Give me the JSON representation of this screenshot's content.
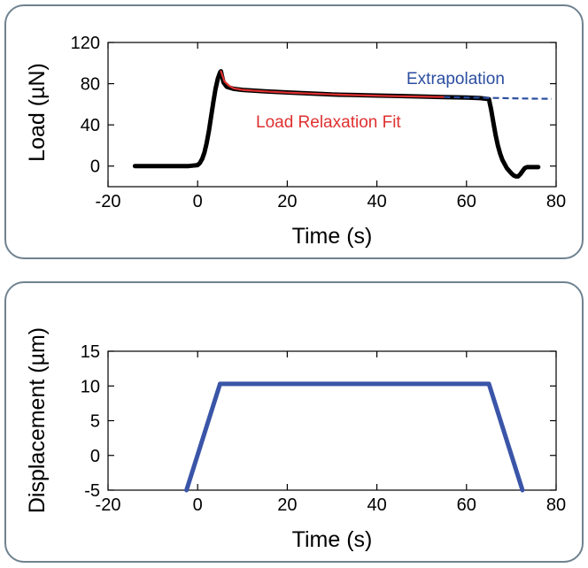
{
  "chart_data": [
    {
      "type": "line",
      "xlabel": "Time (s)",
      "ylabel": "Load (µN)",
      "xlim": [
        -20,
        80
      ],
      "ylim": [
        -20,
        120
      ],
      "xticks": [
        -20,
        0,
        20,
        40,
        60,
        80
      ],
      "yticks": [
        0,
        40,
        80,
        120
      ],
      "xtick_labels": [
        "-20",
        "0",
        "20",
        "40",
        "60",
        "80"
      ],
      "ytick_labels": [
        "0",
        "40",
        "80",
        "120"
      ],
      "grid": false,
      "series": [
        {
          "color": "#000000",
          "style": "solid-thick",
          "x": [
            -14,
            -10,
            -5,
            -2,
            0,
            0.5,
            1,
            1.5,
            2,
            2.5,
            3,
            3.5,
            4,
            4.5,
            5,
            5.2,
            5.4,
            5.8,
            6.5,
            8,
            10,
            15,
            20,
            25,
            30,
            35,
            40,
            45,
            50,
            55,
            60,
            63,
            65,
            65.5,
            66,
            66.5,
            67,
            67.5,
            68,
            69,
            70,
            70.5,
            71,
            71.5,
            72,
            72.5,
            73,
            73.5,
            74,
            75,
            76
          ],
          "y": [
            0,
            0,
            0,
            0,
            1,
            3,
            7,
            13,
            22,
            34,
            48,
            62,
            75,
            85,
            91,
            92,
            88,
            81,
            77,
            75,
            74,
            72.5,
            71.5,
            70.5,
            69.5,
            69,
            68.5,
            68,
            67.5,
            67,
            66.5,
            66,
            65,
            55,
            42,
            30,
            20,
            12,
            6,
            -2,
            -7,
            -9,
            -10,
            -10,
            -8,
            -5,
            -2,
            -1,
            -1,
            -1,
            -1
          ]
        },
        {
          "name": "Load Relaxation Fit",
          "color": "#e03030",
          "style": "solid",
          "x": [
            5.2,
            6,
            7,
            8,
            10,
            15,
            20,
            25,
            30,
            35,
            40,
            45,
            50,
            55
          ],
          "y": [
            92,
            82,
            78,
            75.5,
            74,
            72.5,
            71.3,
            70.4,
            69.6,
            68.9,
            68.3,
            67.8,
            67.4,
            67
          ]
        },
        {
          "name": "Extrapolation",
          "color": "#2b4ea0",
          "style": "dashed",
          "x": [
            55,
            60,
            65,
            70,
            75,
            79
          ],
          "y": [
            67,
            66.6,
            66.2,
            65.8,
            65.5,
            65.3
          ]
        }
      ],
      "annotations": [
        {
          "text": "Extrapolation",
          "x": 63,
          "y": 83,
          "color": "#2b4ea0"
        },
        {
          "text": "Load Relaxation Fit",
          "x": 41,
          "y": 38,
          "color": "#e03030"
        }
      ]
    },
    {
      "type": "line",
      "xlabel": "Time (s)",
      "ylabel": "Displacement (µm)",
      "xlim": [
        -20,
        80
      ],
      "ylim": [
        -5,
        15
      ],
      "xticks": [
        -20,
        0,
        20,
        40,
        60,
        80
      ],
      "yticks": [
        -5,
        0,
        5,
        10,
        15
      ],
      "xtick_labels": [
        "-20",
        "0",
        "20",
        "40",
        "60",
        "80"
      ],
      "ytick_labels": [
        "-5",
        "0",
        "5",
        "10",
        "15"
      ],
      "grid": false,
      "series": [
        {
          "color": "#3a55a8",
          "style": "solid-thick",
          "x": [
            -2.5,
            5,
            65,
            72.5
          ],
          "y": [
            -5,
            10.3,
            10.3,
            -5
          ]
        }
      ]
    }
  ]
}
